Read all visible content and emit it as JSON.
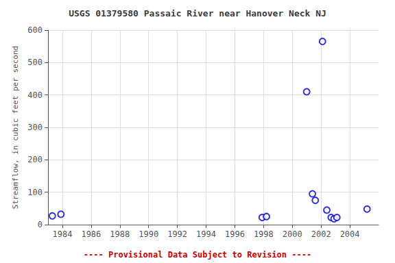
{
  "chart_data": {
    "type": "scatter",
    "title": "USGS 01379580 Passaic River near Hanover Neck NJ",
    "ylabel": "Streamflow, in cubic feet per second",
    "x": [
      1983.3,
      1983.9,
      1997.9,
      1998.2,
      2001.0,
      2001.4,
      2001.6,
      2002.1,
      2002.4,
      2002.7,
      2002.9,
      2003.1,
      2005.2
    ],
    "values": [
      27,
      32,
      22,
      25,
      410,
      95,
      75,
      565,
      45,
      22,
      18,
      22,
      48
    ],
    "color": "#0000cc",
    "marker": "open circle",
    "xlim": [
      1983,
      2006
    ],
    "ylim": [
      0,
      600
    ],
    "xticks": [
      1984,
      1986,
      1988,
      1990,
      1992,
      1994,
      1996,
      1998,
      2000,
      2002,
      2004
    ],
    "yticks": [
      0,
      100,
      200,
      300,
      400,
      500,
      600
    ],
    "grid": true,
    "annotations": [
      {
        "text": "---- Provisional Data Subject to Revision ----",
        "color": "#cc0000"
      }
    ]
  }
}
